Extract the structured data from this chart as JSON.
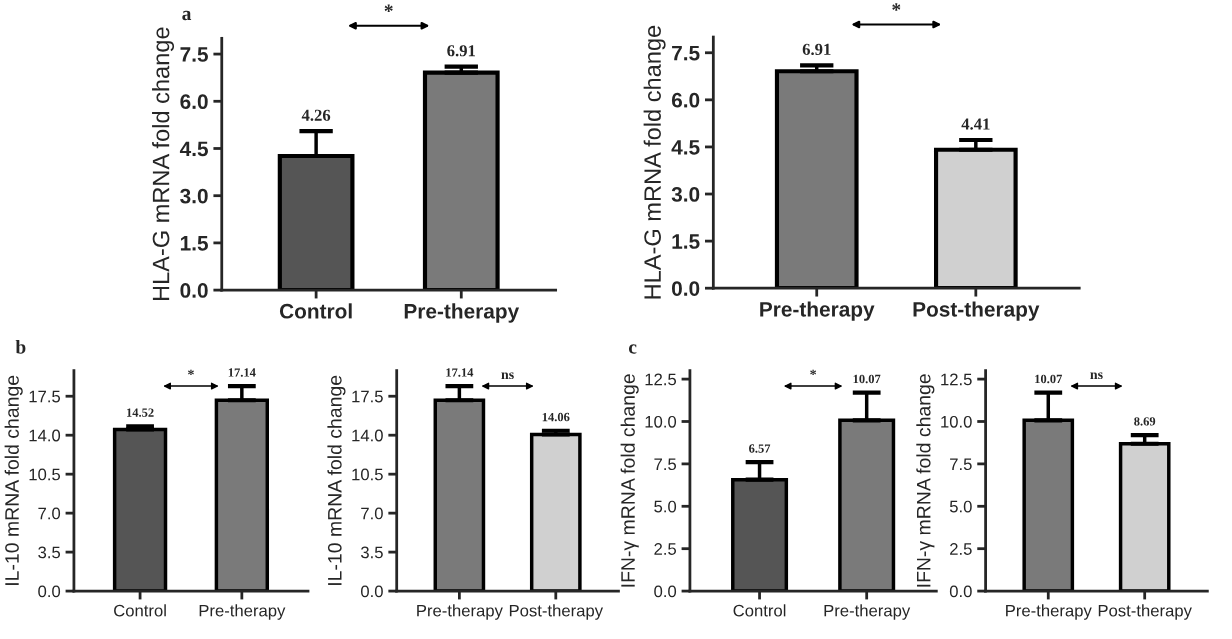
{
  "chart_data": [
    {
      "type": "bar",
      "title": "a",
      "ylabel": "HLA-G mRNA fold change",
      "categories": [
        "Control",
        "Pre-therapy"
      ],
      "values": [
        4.26,
        6.91
      ],
      "errors": [
        [
          4.26,
          5.05
        ],
        [
          6.91,
          7.1
        ]
      ],
      "colors": [
        "#555555",
        "#7a7a7a"
      ],
      "ylim": [
        0,
        8.0
      ],
      "yticks": [
        {
          "value": 0,
          "label": "0.0"
        },
        1.5,
        {
          "value": 3,
          "label": "3.0"
        },
        4.5,
        {
          "value": 6,
          "label": "6.0"
        },
        7.5
      ],
      "data_labels": true,
      "annotations": [
        "*"
      ]
    },
    {
      "type": "bar",
      "ylabel": "HLA-G mRNA fold change",
      "categories": [
        "Pre-therapy",
        "Post-therapy"
      ],
      "values": [
        6.91,
        4.41
      ],
      "errors": [
        [
          6.91,
          7.1
        ],
        [
          4.41,
          4.72
        ]
      ],
      "colors": [
        "#7a7a7a",
        "#d0d0d0"
      ],
      "ylim": [
        0,
        8.0
      ],
      "yticks": [
        {
          "value": 0,
          "label": "0.0"
        },
        1.5,
        {
          "value": 3,
          "label": "3.0"
        },
        4.5,
        {
          "value": 6,
          "label": "6.0"
        },
        7.5
      ],
      "data_labels": true,
      "annotations": [
        "*"
      ]
    },
    {
      "type": "bar",
      "title": "b",
      "ylabel": "IL-10 mRNA fold change",
      "categories": [
        "Control",
        "Pre-therapy"
      ],
      "values": [
        14.52,
        17.14
      ],
      "errors": [
        [
          14.52,
          14.8
        ],
        [
          17.14,
          18.4
        ]
      ],
      "colors": [
        "#555555",
        "#7a7a7a"
      ],
      "ylim": [
        0,
        19.8
      ],
      "yticks": [
        {
          "value": 0,
          "label": "0.0"
        },
        3.5,
        {
          "value": 7,
          "label": "7.0"
        },
        10.5,
        {
          "value": 14,
          "label": "14.0"
        },
        17.5
      ],
      "data_labels": true,
      "annotations": [
        "*"
      ]
    },
    {
      "type": "bar",
      "ylabel": "IL-10 mRNA fold change",
      "categories": [
        "Pre-therapy",
        "Post-therapy"
      ],
      "values": [
        17.14,
        14.06
      ],
      "errors": [
        [
          17.14,
          18.4
        ],
        [
          14.06,
          14.4
        ]
      ],
      "colors": [
        "#7a7a7a",
        "#d0d0d0"
      ],
      "ylim": [
        0,
        19.8
      ],
      "yticks": [
        {
          "value": 0,
          "label": "0.0"
        },
        3.5,
        {
          "value": 7,
          "label": "7.0"
        },
        10.5,
        {
          "value": 14,
          "label": "14.0"
        },
        17.5
      ],
      "data_labels": true,
      "annotations": [
        "ns"
      ]
    },
    {
      "type": "bar",
      "title": "c",
      "ylabel": "IFN-γ mRNA fold change",
      "categories": [
        "Control",
        "Pre-therapy"
      ],
      "values": [
        6.57,
        10.07
      ],
      "errors": [
        [
          6.57,
          7.6
        ],
        [
          10.07,
          11.7
        ]
      ],
      "colors": [
        "#555555",
        "#7a7a7a"
      ],
      "ylim": [
        0,
        13.0
      ],
      "yticks": [
        {
          "value": 0,
          "label": "0.0"
        },
        2.5,
        {
          "value": 5,
          "label": "5.0"
        },
        7.5,
        {
          "value": 10,
          "label": "10.0"
        },
        12.5
      ],
      "data_labels": true,
      "annotations": [
        "*"
      ]
    },
    {
      "type": "bar",
      "ylabel": "IFN-γ mRNA fold change",
      "categories": [
        "Pre-therapy",
        "Post-therapy"
      ],
      "values": [
        10.07,
        8.69
      ],
      "errors": [
        [
          10.07,
          11.7
        ],
        [
          8.69,
          9.2
        ]
      ],
      "colors": [
        "#7a7a7a",
        "#d0d0d0"
      ],
      "ylim": [
        0,
        13.0
      ],
      "yticks": [
        {
          "value": 0,
          "label": "0.0"
        },
        2.5,
        {
          "value": 5,
          "label": "5.0"
        },
        7.5,
        {
          "value": 10,
          "label": "10.0"
        },
        12.5
      ],
      "data_labels": true,
      "annotations": [
        "ns"
      ]
    }
  ]
}
